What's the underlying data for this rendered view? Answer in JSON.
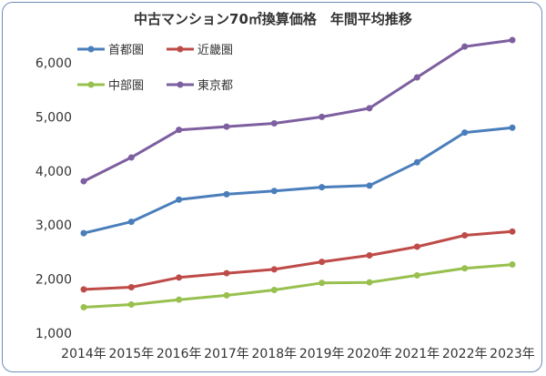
{
  "chart_data": {
    "type": "line",
    "title": "中古マンション70㎡換算価格　年間平均推移",
    "xlabel": "",
    "ylabel": "",
    "categories": [
      "2014年",
      "2015年",
      "2016年",
      "2017年",
      "2018年",
      "2019年",
      "2020年",
      "2021年",
      "2022年",
      "2023年"
    ],
    "ylim": [
      1000,
      6500
    ],
    "yticks": [
      1000,
      2000,
      3000,
      4000,
      5000,
      6000
    ],
    "ytick_labels": [
      "1,000",
      "2,000",
      "3,000",
      "4,000",
      "5,000",
      "6,000"
    ],
    "grid": false,
    "legend_position": "top-left",
    "series": [
      {
        "name": "首都圏",
        "color": "#4a7ebb",
        "values": [
          2850,
          3060,
          3470,
          3570,
          3630,
          3700,
          3730,
          4160,
          4710,
          4800
        ]
      },
      {
        "name": "近畿圏",
        "color": "#be4b48",
        "values": [
          1810,
          1850,
          2030,
          2110,
          2180,
          2320,
          2440,
          2600,
          2810,
          2880
        ]
      },
      {
        "name": "中部圏",
        "color": "#98c04e",
        "values": [
          1480,
          1530,
          1620,
          1700,
          1800,
          1930,
          1940,
          2070,
          2200,
          2270
        ]
      },
      {
        "name": "東京都",
        "color": "#7d5fa0",
        "values": [
          3810,
          4250,
          4760,
          4820,
          4880,
          5000,
          5160,
          5730,
          6300,
          6420
        ]
      }
    ]
  }
}
